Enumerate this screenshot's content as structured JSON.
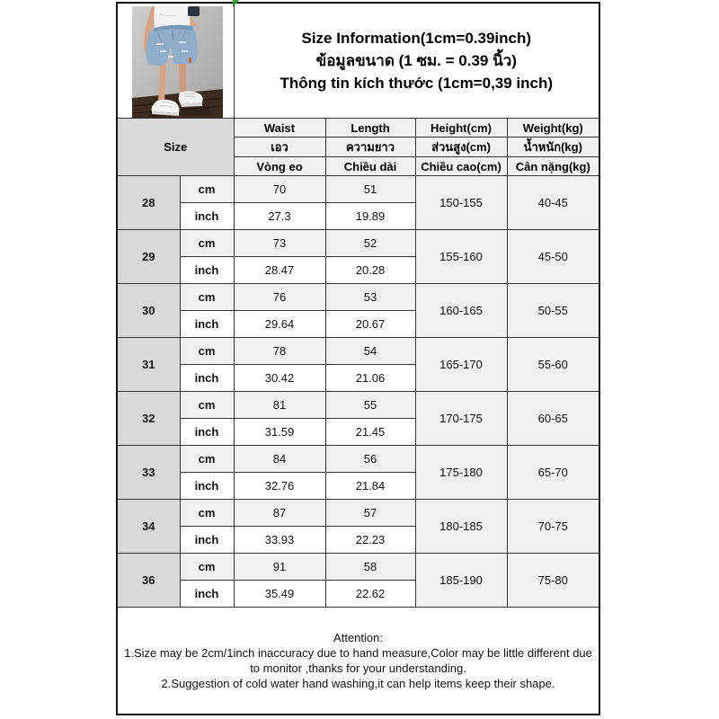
{
  "title": {
    "line_en": "Size Information(1cm=0.39inch)",
    "line_th": "ข้อมูลขนาด (1 ซม. = 0.39 นิ้ว)",
    "line_vi": "Thông tin kích thước (1cm=0,39 inch)"
  },
  "images": {
    "product_photo": "model-wearing-ripped-light-blue-denim-shorts-white-sneakers"
  },
  "size_label": "Size",
  "columns": {
    "waist": {
      "en": "Waist",
      "th": "เอว",
      "vi": "Vòng eo"
    },
    "length": {
      "en": "Length",
      "th": "ความยาว",
      "vi": "Chiều dài"
    },
    "height": {
      "en": "Height(cm)",
      "th": "ส่วนสูง(cm)",
      "vi": "Chiều cao(cm)"
    },
    "weight": {
      "en": "Weight(kg)",
      "th": "น้ำหนัก(kg)",
      "vi": "Cân nặng(kg)"
    }
  },
  "units": {
    "cm": "cm",
    "inch": "inch"
  },
  "rows": [
    {
      "size": "28",
      "waist_cm": "70",
      "length_cm": "51",
      "waist_inch": "27.3",
      "length_inch": "19.89",
      "height": "150-155",
      "weight": "40-45"
    },
    {
      "size": "29",
      "waist_cm": "73",
      "length_cm": "52",
      "waist_inch": "28.47",
      "length_inch": "20.28",
      "height": "155-160",
      "weight": "45-50"
    },
    {
      "size": "30",
      "waist_cm": "76",
      "length_cm": "53",
      "waist_inch": "29.64",
      "length_inch": "20.67",
      "height": "160-165",
      "weight": "50-55"
    },
    {
      "size": "31",
      "waist_cm": "78",
      "length_cm": "54",
      "waist_inch": "30.42",
      "length_inch": "21.06",
      "height": "165-170",
      "weight": "55-60"
    },
    {
      "size": "32",
      "waist_cm": "81",
      "length_cm": "55",
      "waist_inch": "31.59",
      "length_inch": "21.45",
      "height": "170-175",
      "weight": "60-65"
    },
    {
      "size": "33",
      "waist_cm": "84",
      "length_cm": "56",
      "waist_inch": "32.76",
      "length_inch": "21.84",
      "height": "175-180",
      "weight": "65-70"
    },
    {
      "size": "34",
      "waist_cm": "87",
      "length_cm": "57",
      "waist_inch": "33.93",
      "length_inch": "22.23",
      "height": "180-185",
      "weight": "70-75"
    },
    {
      "size": "36",
      "waist_cm": "91",
      "length_cm": "58",
      "waist_inch": "35.49",
      "length_inch": "22.62",
      "height": "185-190",
      "weight": "75-80"
    }
  ],
  "attention": {
    "heading": "Attention:",
    "line1": "1.Size may be 2cm/1inch inaccuracy due to hand measure,Color may be little different due to monitor ,thanks for your understanding.",
    "line2": "2.Suggestion of cold water hand washing,it can help items keep their shape."
  },
  "colors": {
    "size_cell_bg": "#d9d9d9",
    "header_cell_bg": "#f0f0f0",
    "cm_row_bg": "#f0f0f0",
    "inch_row_bg": "#ffffff",
    "grid_line": "#353535",
    "error_flag_green": "#2f9e2f"
  }
}
